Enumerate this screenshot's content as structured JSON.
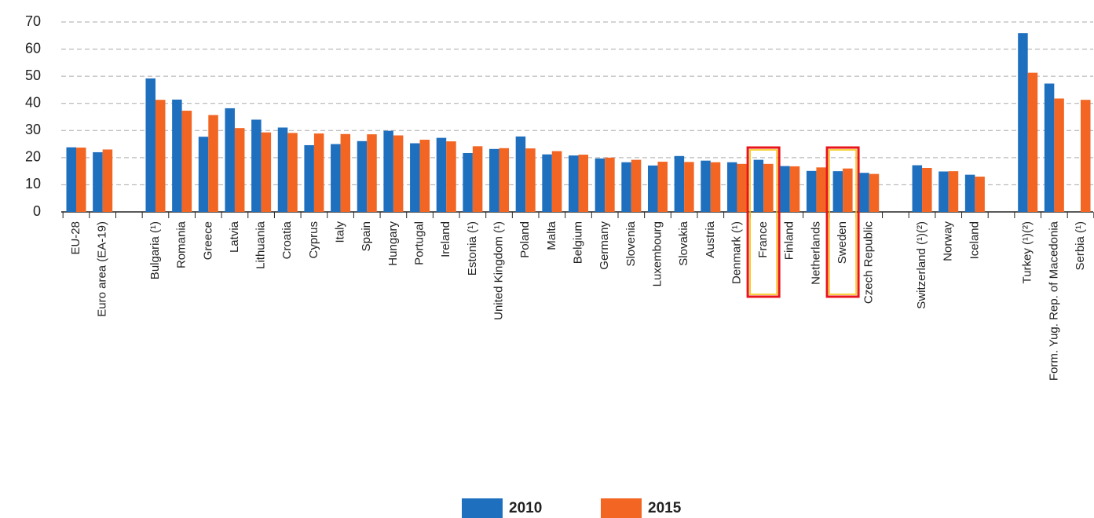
{
  "chart_data": {
    "type": "bar",
    "categories": [
      "EU-28",
      "Euro area (EA-19)",
      null,
      "Bulgaria (¹)",
      "Romania",
      "Greece",
      "Latvia",
      "Lithuania",
      "Croatia",
      "Cyprus",
      "Italy",
      "Spain",
      "Hungary",
      "Portugal",
      "Ireland",
      "Estonia (¹)",
      "United Kingdom (¹)",
      "Poland",
      "Malta",
      "Belgium",
      "Germany",
      "Slovenia",
      "Luxembourg",
      "Slovakia",
      "Austria",
      "Denmark (¹)",
      "France",
      "Finland",
      "Netherlands",
      "Sweden",
      "Czech Republic",
      null,
      "Switzerland (¹)(²)",
      "Norway",
      "Iceland",
      null,
      "Turkey (¹)(²)",
      "Form. Yug. Rep. of Macedonia",
      "Serbia (¹)"
    ],
    "series": [
      {
        "name": "2010",
        "color": "#1f6fbf",
        "values": [
          23.8,
          22.0,
          null,
          49.2,
          41.4,
          27.7,
          38.2,
          34.0,
          31.1,
          24.6,
          25.0,
          26.1,
          29.9,
          25.3,
          27.3,
          21.7,
          23.2,
          27.8,
          21.2,
          20.8,
          19.7,
          18.3,
          17.1,
          20.6,
          18.9,
          18.3,
          19.2,
          16.9,
          15.1,
          15.0,
          14.4,
          null,
          17.2,
          14.9,
          13.7,
          null,
          65.9,
          47.3,
          null
        ]
      },
      {
        "name": "2015",
        "color": "#f26522",
        "values": [
          23.7,
          23.0,
          null,
          41.3,
          37.3,
          35.7,
          30.9,
          29.3,
          29.1,
          28.9,
          28.7,
          28.6,
          28.2,
          26.6,
          26.0,
          24.2,
          23.5,
          23.4,
          22.4,
          21.1,
          20.0,
          19.2,
          18.5,
          18.4,
          18.3,
          17.7,
          17.7,
          16.8,
          16.4,
          16.0,
          14.0,
          null,
          16.2,
          15.0,
          13.0,
          null,
          51.3,
          41.8,
          41.3
        ]
      }
    ],
    "ylim": [
      0,
      70
    ],
    "yticks": [
      0,
      10,
      20,
      30,
      40,
      50,
      60,
      70
    ],
    "grid": true,
    "highlight": [
      "France",
      "Sweden"
    ],
    "highlight_color": "#e8141b"
  }
}
